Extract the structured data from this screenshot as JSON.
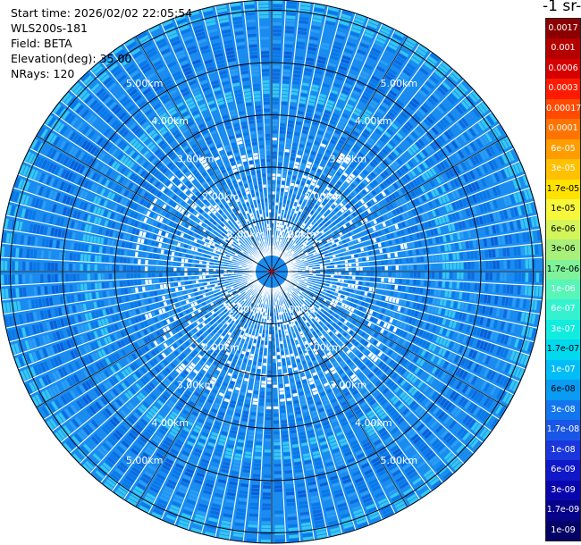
{
  "info": {
    "start_time": "Start time: 2026/02/02 22:05:54",
    "instrument": "WLS200s-181",
    "field": "Field: BETA",
    "elevation": "Elevation(deg): 35.00",
    "nrays": "NRays: 120"
  },
  "colorbar": {
    "title": "-1 sr-",
    "entries": [
      {
        "label": "0.0017",
        "color": "#8b0000",
        "text": "#ffffff"
      },
      {
        "label": "0.001",
        "color": "#b50000",
        "text": "#ffffff"
      },
      {
        "label": "0.0006",
        "color": "#d60000",
        "text": "#ffffff"
      },
      {
        "label": "0.0003",
        "color": "#ff1a00",
        "text": "#ffffff"
      },
      {
        "label": "0.00017",
        "color": "#ff4a00",
        "text": "#ffffff"
      },
      {
        "label": "0.0001",
        "color": "#ff7400",
        "text": "#ffffff"
      },
      {
        "label": "6e-05",
        "color": "#ff9c00",
        "text": "#ffffff"
      },
      {
        "label": "3e-05",
        "color": "#ffc000",
        "text": "#ffffff"
      },
      {
        "label": "1.7e-05",
        "color": "#ffe200",
        "text": "#000000"
      },
      {
        "label": "1e-05",
        "color": "#f6f73a",
        "text": "#000000"
      },
      {
        "label": "6e-06",
        "color": "#d4f55a",
        "text": "#000000"
      },
      {
        "label": "3e-06",
        "color": "#a8f07a",
        "text": "#000000"
      },
      {
        "label": "1.7e-06",
        "color": "#7ff29a",
        "text": "#000000"
      },
      {
        "label": "1e-06",
        "color": "#58f5b8",
        "text": "#ffffff"
      },
      {
        "label": "6e-07",
        "color": "#34f2cf",
        "text": "#ffffff"
      },
      {
        "label": "3e-07",
        "color": "#12ecde",
        "text": "#ffffff"
      },
      {
        "label": "1.7e-07",
        "color": "#00d9ee",
        "text": "#000000"
      },
      {
        "label": "1e-07",
        "color": "#00bdf7",
        "text": "#ffffff"
      },
      {
        "label": "6e-08",
        "color": "#0a9bf2",
        "text": "#000000"
      },
      {
        "label": "3e-08",
        "color": "#1276ee",
        "text": "#ffffff"
      },
      {
        "label": "1.7e-08",
        "color": "#1a56e6",
        "text": "#ffffff"
      },
      {
        "label": "1e-08",
        "color": "#1a36dc",
        "text": "#ffffff"
      },
      {
        "label": "6e-09",
        "color": "#1018c8",
        "text": "#ffffff"
      },
      {
        "label": "3e-09",
        "color": "#0a06ae",
        "text": "#ffffff"
      },
      {
        "label": "1.7e-09",
        "color": "#07038a",
        "text": "#ffffff"
      },
      {
        "label": "1e-09",
        "color": "#050265",
        "text": "#ffffff"
      }
    ]
  },
  "range_rings": [
    "1.00km",
    "2.00km",
    "3.00km",
    "4.00km",
    "5.00km"
  ],
  "colors": {
    "dominant": "#1a8cf0",
    "background": "#ffffff",
    "ring": "#000000",
    "center_marker": "#e00000"
  }
}
